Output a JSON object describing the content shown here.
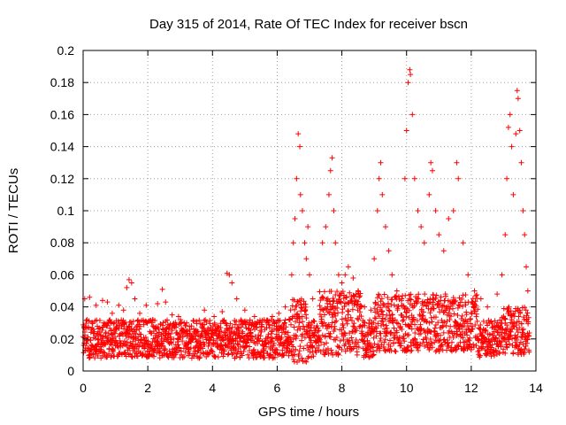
{
  "chart_data": {
    "type": "scatter",
    "title": "Day 315 of 2014, Rate Of TEC Index for receiver bscn",
    "xlabel": "GPS time / hours",
    "ylabel": "ROTI / TECUs",
    "xlim": [
      0,
      14
    ],
    "ylim": [
      0,
      0.2
    ],
    "xticks": [
      0,
      2,
      4,
      6,
      8,
      10,
      12,
      14
    ],
    "yticks": [
      0,
      0.02,
      0.04,
      0.06,
      0.08,
      0.1,
      0.12,
      0.14,
      0.16,
      0.18,
      0.2
    ],
    "ytick_labels": [
      "0",
      "0.02",
      "0.04",
      "0.06",
      "0.08",
      "0.1",
      "0.12",
      "0.14",
      "0.16",
      "0.18",
      "0.2"
    ],
    "xtick_labels": [
      "0",
      "2",
      "4",
      "6",
      "8",
      "10",
      "12",
      "14"
    ],
    "grid": true,
    "marker": "+",
    "color": "#ff0000",
    "series": [
      {
        "name": "ROTI",
        "points": [
          [
            0.05,
            0.045
          ],
          [
            0.2,
            0.046
          ],
          [
            0.4,
            0.041
          ],
          [
            0.6,
            0.044
          ],
          [
            0.75,
            0.043
          ],
          [
            0.9,
            0.036
          ],
          [
            1.1,
            0.041
          ],
          [
            1.25,
            0.038
          ],
          [
            1.35,
            0.052
          ],
          [
            1.42,
            0.057
          ],
          [
            1.5,
            0.055
          ],
          [
            1.6,
            0.045
          ],
          [
            1.75,
            0.036
          ],
          [
            1.95,
            0.041
          ],
          [
            2.15,
            0.032
          ],
          [
            2.3,
            0.042
          ],
          [
            2.45,
            0.051
          ],
          [
            2.55,
            0.043
          ],
          [
            2.75,
            0.035
          ],
          [
            2.95,
            0.034
          ],
          [
            3.2,
            0.03
          ],
          [
            3.5,
            0.031
          ],
          [
            3.75,
            0.038
          ],
          [
            4.05,
            0.034
          ],
          [
            4.3,
            0.037
          ],
          [
            4.45,
            0.061
          ],
          [
            4.52,
            0.06
          ],
          [
            4.6,
            0.055
          ],
          [
            4.75,
            0.045
          ],
          [
            5.0,
            0.038
          ],
          [
            5.3,
            0.034
          ],
          [
            5.6,
            0.032
          ],
          [
            5.85,
            0.034
          ],
          [
            6.05,
            0.036
          ],
          [
            6.25,
            0.04
          ],
          [
            6.45,
            0.06
          ],
          [
            6.5,
            0.08
          ],
          [
            6.55,
            0.095
          ],
          [
            6.6,
            0.12
          ],
          [
            6.65,
            0.148
          ],
          [
            6.7,
            0.14
          ],
          [
            6.72,
            0.11
          ],
          [
            6.78,
            0.1
          ],
          [
            6.85,
            0.08
          ],
          [
            6.9,
            0.07
          ],
          [
            6.95,
            0.09
          ],
          [
            7.0,
            0.06
          ],
          [
            7.1,
            0.045
          ],
          [
            7.4,
            0.08
          ],
          [
            7.5,
            0.09
          ],
          [
            7.6,
            0.11
          ],
          [
            7.65,
            0.125
          ],
          [
            7.7,
            0.133
          ],
          [
            7.75,
            0.1
          ],
          [
            7.8,
            0.08
          ],
          [
            7.9,
            0.06
          ],
          [
            8.0,
            0.055
          ],
          [
            8.1,
            0.06
          ],
          [
            8.2,
            0.065
          ],
          [
            8.35,
            0.058
          ],
          [
            8.5,
            0.05
          ],
          [
            8.7,
            0.04
          ],
          [
            8.9,
            0.038
          ],
          [
            9.0,
            0.07
          ],
          [
            9.1,
            0.1
          ],
          [
            9.15,
            0.12
          ],
          [
            9.2,
            0.13
          ],
          [
            9.25,
            0.11
          ],
          [
            9.35,
            0.09
          ],
          [
            9.45,
            0.075
          ],
          [
            9.55,
            0.06
          ],
          [
            9.7,
            0.05
          ],
          [
            9.85,
            0.045
          ],
          [
            9.95,
            0.12
          ],
          [
            10.0,
            0.15
          ],
          [
            10.05,
            0.18
          ],
          [
            10.1,
            0.188
          ],
          [
            10.12,
            0.185
          ],
          [
            10.18,
            0.16
          ],
          [
            10.25,
            0.12
          ],
          [
            10.35,
            0.1
          ],
          [
            10.45,
            0.09
          ],
          [
            10.55,
            0.08
          ],
          [
            10.7,
            0.11
          ],
          [
            10.75,
            0.13
          ],
          [
            10.8,
            0.125
          ],
          [
            10.9,
            0.1
          ],
          [
            11.0,
            0.085
          ],
          [
            11.15,
            0.075
          ],
          [
            11.3,
            0.095
          ],
          [
            11.45,
            0.1
          ],
          [
            11.55,
            0.13
          ],
          [
            11.6,
            0.12
          ],
          [
            11.75,
            0.08
          ],
          [
            11.9,
            0.06
          ],
          [
            12.1,
            0.05
          ],
          [
            12.3,
            0.045
          ],
          [
            12.5,
            0.04
          ],
          [
            12.8,
            0.048
          ],
          [
            12.95,
            0.06
          ],
          [
            13.05,
            0.085
          ],
          [
            13.1,
            0.12
          ],
          [
            13.15,
            0.152
          ],
          [
            13.2,
            0.16
          ],
          [
            13.25,
            0.14
          ],
          [
            13.3,
            0.11
          ],
          [
            13.38,
            0.148
          ],
          [
            13.42,
            0.175
          ],
          [
            13.45,
            0.17
          ],
          [
            13.5,
            0.15
          ],
          [
            13.55,
            0.13
          ],
          [
            13.6,
            0.1
          ],
          [
            13.65,
            0.085
          ],
          [
            13.7,
            0.065
          ],
          [
            13.75,
            0.05
          ]
        ]
      }
    ],
    "density_profile_note": "dense band of many points between 0.01 and 0.035 across all times"
  }
}
